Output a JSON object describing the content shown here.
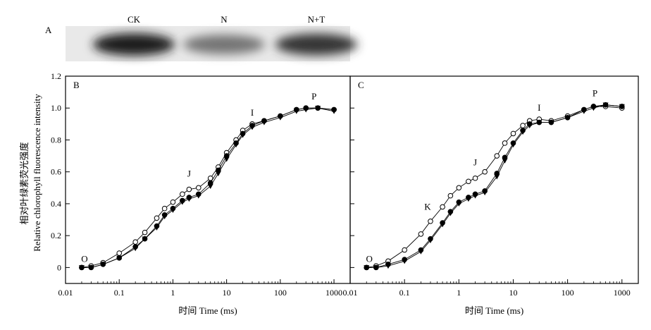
{
  "figure": {
    "panel_a": {
      "label": "A",
      "lanes": [
        "CK",
        "N",
        "N+T"
      ],
      "band_intensity": [
        0.95,
        0.55,
        0.85
      ]
    },
    "y_axis_label_cn": "相对叶绿素荧光强度",
    "y_axis_label_en": "Relative chlorophyll fluorescence intensity"
  },
  "chart_data": [
    {
      "panel": "B",
      "type": "scatter",
      "x_scale": "log",
      "xlabel": "时间 Time (ms)",
      "ylabel": "相对叶绿素荧光强度 Relative chlorophyll fluorescence intensity",
      "xlim": [
        0.01,
        2000
      ],
      "ylim": [
        -0.1,
        1.2
      ],
      "x_ticks": [
        "0.01",
        "0.1",
        "1",
        "10",
        "100",
        "1000"
      ],
      "y_ticks": [
        "0",
        "0.2",
        "0.4",
        "0.6",
        "0.8",
        "1.0",
        "1.2"
      ],
      "grid": false,
      "annotations": [
        {
          "text": "O",
          "x": 0.02,
          "y": 0.0
        },
        {
          "text": "J",
          "x": 2,
          "y": 0.5
        },
        {
          "text": "I",
          "x": 30,
          "y": 0.9
        },
        {
          "text": "P",
          "x": 400,
          "y": 1.0
        }
      ],
      "series": [
        {
          "marker": "open-circle",
          "points": [
            [
              0.02,
              0.0
            ],
            [
              0.03,
              0.01
            ],
            [
              0.05,
              0.03
            ],
            [
              0.1,
              0.09
            ],
            [
              0.2,
              0.16
            ],
            [
              0.3,
              0.22
            ],
            [
              0.5,
              0.31
            ],
            [
              0.7,
              0.37
            ],
            [
              1,
              0.41
            ],
            [
              1.5,
              0.46
            ],
            [
              2,
              0.49
            ],
            [
              3,
              0.5
            ],
            [
              5,
              0.56
            ],
            [
              7,
              0.63
            ],
            [
              10,
              0.72
            ],
            [
              15,
              0.8
            ],
            [
              20,
              0.86
            ],
            [
              30,
              0.9
            ],
            [
              50,
              0.92
            ],
            [
              100,
              0.95
            ],
            [
              200,
              0.99
            ],
            [
              300,
              1.0
            ],
            [
              500,
              1.0
            ],
            [
              1000,
              0.99
            ]
          ]
        },
        {
          "marker": "filled-circle",
          "points": [
            [
              0.02,
              0.0
            ],
            [
              0.03,
              0.0
            ],
            [
              0.05,
              0.02
            ],
            [
              0.1,
              0.06
            ],
            [
              0.2,
              0.13
            ],
            [
              0.3,
              0.18
            ],
            [
              0.5,
              0.26
            ],
            [
              0.7,
              0.33
            ],
            [
              1,
              0.37
            ],
            [
              1.5,
              0.42
            ],
            [
              2,
              0.44
            ],
            [
              3,
              0.46
            ],
            [
              5,
              0.53
            ],
            [
              7,
              0.61
            ],
            [
              10,
              0.7
            ],
            [
              15,
              0.78
            ],
            [
              20,
              0.84
            ],
            [
              30,
              0.89
            ],
            [
              50,
              0.92
            ],
            [
              100,
              0.95
            ],
            [
              200,
              0.99
            ],
            [
              300,
              1.0
            ],
            [
              500,
              1.0
            ],
            [
              1000,
              0.99
            ]
          ]
        },
        {
          "marker": "filled-triangle-down",
          "points": [
            [
              0.02,
              0.0
            ],
            [
              0.03,
              0.0
            ],
            [
              0.05,
              0.02
            ],
            [
              0.1,
              0.06
            ],
            [
              0.2,
              0.12
            ],
            [
              0.3,
              0.18
            ],
            [
              0.5,
              0.25
            ],
            [
              0.7,
              0.32
            ],
            [
              1,
              0.36
            ],
            [
              1.5,
              0.41
            ],
            [
              2,
              0.43
            ],
            [
              3,
              0.45
            ],
            [
              5,
              0.51
            ],
            [
              7,
              0.59
            ],
            [
              10,
              0.68
            ],
            [
              15,
              0.77
            ],
            [
              20,
              0.83
            ],
            [
              30,
              0.88
            ],
            [
              50,
              0.91
            ],
            [
              100,
              0.94
            ],
            [
              200,
              0.98
            ],
            [
              300,
              0.99
            ],
            [
              500,
              1.0
            ],
            [
              1000,
              0.98
            ]
          ]
        }
      ]
    },
    {
      "panel": "C",
      "type": "scatter",
      "x_scale": "log",
      "xlabel": "时间 Time (ms)",
      "xlim": [
        0.01,
        2000
      ],
      "ylim": [
        -0.1,
        1.2
      ],
      "x_ticks": [
        "0.01",
        "0.1",
        "1",
        "10",
        "100",
        "1000"
      ],
      "grid": false,
      "annotations": [
        {
          "text": "O",
          "x": 0.02,
          "y": 0.0
        },
        {
          "text": "K",
          "x": 0.3,
          "y": 0.3
        },
        {
          "text": "J",
          "x": 2,
          "y": 0.57
        },
        {
          "text": "I",
          "x": 30,
          "y": 0.93
        },
        {
          "text": "P",
          "x": 300,
          "y": 1.02
        }
      ],
      "series": [
        {
          "marker": "open-circle",
          "points": [
            [
              0.02,
              0.0
            ],
            [
              0.03,
              0.01
            ],
            [
              0.05,
              0.04
            ],
            [
              0.1,
              0.11
            ],
            [
              0.2,
              0.21
            ],
            [
              0.3,
              0.29
            ],
            [
              0.5,
              0.38
            ],
            [
              0.7,
              0.45
            ],
            [
              1,
              0.5
            ],
            [
              1.5,
              0.54
            ],
            [
              2,
              0.56
            ],
            [
              3,
              0.6
            ],
            [
              5,
              0.7
            ],
            [
              7,
              0.78
            ],
            [
              10,
              0.84
            ],
            [
              15,
              0.89
            ],
            [
              20,
              0.92
            ],
            [
              30,
              0.93
            ],
            [
              50,
              0.92
            ],
            [
              100,
              0.95
            ],
            [
              200,
              0.99
            ],
            [
              300,
              1.01
            ],
            [
              500,
              1.01
            ],
            [
              1000,
              1.0
            ]
          ]
        },
        {
          "marker": "filled-circle",
          "points": [
            [
              0.02,
              0.0
            ],
            [
              0.03,
              0.0
            ],
            [
              0.05,
              0.02
            ],
            [
              0.1,
              0.05
            ],
            [
              0.2,
              0.11
            ],
            [
              0.3,
              0.18
            ],
            [
              0.5,
              0.28
            ],
            [
              0.7,
              0.35
            ],
            [
              1,
              0.41
            ],
            [
              1.5,
              0.44
            ],
            [
              2,
              0.46
            ],
            [
              3,
              0.48
            ],
            [
              5,
              0.59
            ],
            [
              7,
              0.69
            ],
            [
              10,
              0.78
            ],
            [
              15,
              0.86
            ],
            [
              20,
              0.9
            ],
            [
              30,
              0.91
            ],
            [
              50,
              0.91
            ],
            [
              100,
              0.94
            ],
            [
              200,
              0.99
            ],
            [
              300,
              1.01
            ],
            [
              500,
              1.02
            ],
            [
              1000,
              1.01
            ]
          ]
        },
        {
          "marker": "filled-triangle-down",
          "points": [
            [
              0.02,
              0.0
            ],
            [
              0.03,
              0.0
            ],
            [
              0.05,
              0.01
            ],
            [
              0.1,
              0.04
            ],
            [
              0.2,
              0.1
            ],
            [
              0.3,
              0.17
            ],
            [
              0.5,
              0.27
            ],
            [
              0.7,
              0.34
            ],
            [
              1,
              0.4
            ],
            [
              1.5,
              0.43
            ],
            [
              2,
              0.45
            ],
            [
              3,
              0.47
            ],
            [
              5,
              0.57
            ],
            [
              7,
              0.67
            ],
            [
              10,
              0.77
            ],
            [
              15,
              0.85
            ],
            [
              20,
              0.89
            ],
            [
              30,
              0.91
            ],
            [
              50,
              0.91
            ],
            [
              100,
              0.94
            ],
            [
              200,
              0.98
            ],
            [
              300,
              1.0
            ],
            [
              500,
              1.02
            ],
            [
              1000,
              1.01
            ]
          ]
        }
      ]
    }
  ]
}
